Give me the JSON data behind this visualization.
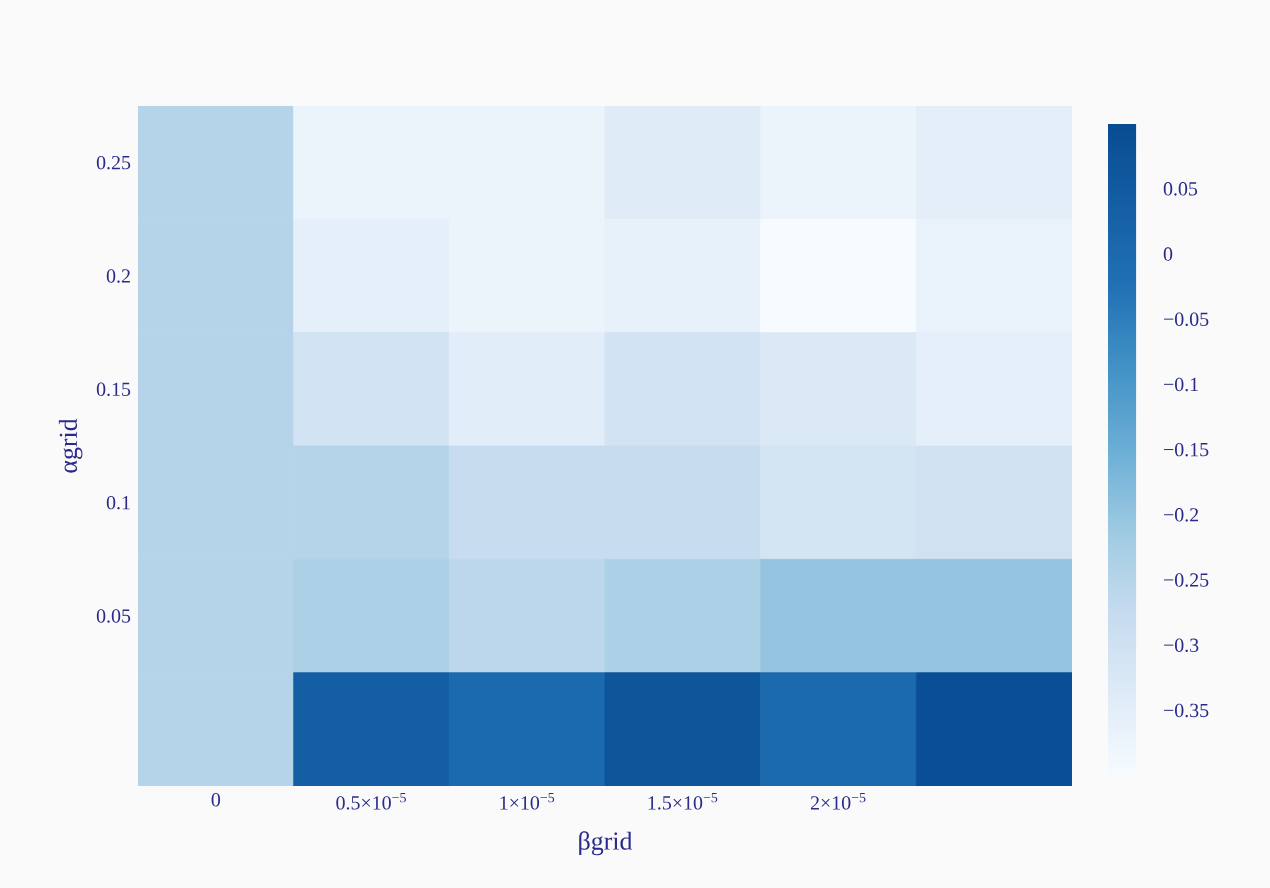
{
  "chart_data": {
    "type": "heatmap",
    "xlabel": "βgrid",
    "ylabel": "αgrid",
    "categories": [
      "0",
      "0.5×10$^{−5}$",
      "1×10$^{−5}$",
      "1.5×10$^{−5}$",
      "2×10$^{−5}$",
      null
    ],
    "y_categories": [
      "0.25",
      "0.2",
      "0.15",
      "0.1",
      "0.05",
      null
    ],
    "cells": [
      [
        -0.25,
        -0.37,
        -0.37,
        -0.34,
        -0.37,
        -0.35
      ],
      [
        -0.25,
        -0.355,
        -0.37,
        -0.36,
        -0.4,
        -0.365
      ],
      [
        -0.25,
        -0.305,
        -0.345,
        -0.305,
        -0.33,
        -0.355
      ],
      [
        -0.25,
        -0.25,
        -0.28,
        -0.28,
        -0.31,
        -0.3
      ],
      [
        -0.25,
        -0.235,
        -0.26,
        -0.235,
        -0.2,
        -0.2
      ],
      [
        -0.25,
        0.04,
        0.0,
        0.07,
        0.0,
        0.09
      ]
    ],
    "clim": [
      -0.4,
      0.1
    ],
    "cticks": [
      {
        "value": 0.05,
        "label": "0.05"
      },
      {
        "value": 0,
        "label": "0"
      },
      {
        "value": -0.05,
        "label": "−0.05"
      },
      {
        "value": -0.1,
        "label": "−0.1"
      },
      {
        "value": -0.15,
        "label": "−0.15"
      },
      {
        "value": -0.2,
        "label": "−0.2"
      },
      {
        "value": -0.25,
        "label": "−0.25"
      },
      {
        "value": -0.3,
        "label": "−0.3"
      },
      {
        "value": -0.35,
        "label": "−0.35"
      }
    ]
  }
}
